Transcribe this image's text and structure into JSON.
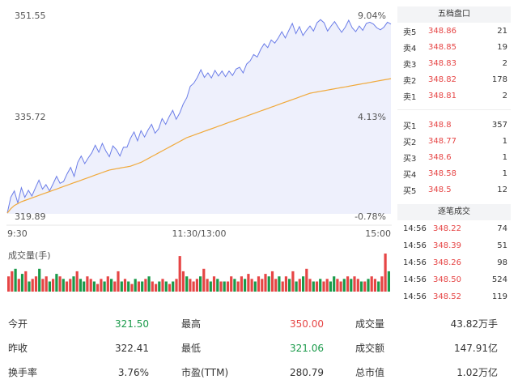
{
  "chart": {
    "y_labels": {
      "high": "351.55",
      "mid": "335.72",
      "low": "319.89"
    },
    "pct_labels": {
      "high": "9.04%",
      "mid": "4.13%",
      "low": "-0.78%"
    },
    "x_labels": [
      "9:30",
      "11:30/13:00",
      "15:00"
    ],
    "volume_title": "成交量(手)",
    "colors": {
      "price": "#6b7de8",
      "avg": "#f0a93b",
      "up": "#e64545",
      "down": "#1a9a4a",
      "fill": "#eef0fc"
    }
  },
  "chart_data": {
    "type": "line",
    "ylim": [
      319.89,
      351.55
    ],
    "series": [
      {
        "name": "",
        "values": [
          320.0,
          322.5,
          323.5,
          321.6,
          324.0,
          322.5,
          323.6,
          322.7,
          324.0,
          325.2,
          323.8,
          324.5,
          323.5,
          324.6,
          325.8,
          324.7,
          325.0,
          326.2,
          327.2,
          325.8,
          328.0,
          329.0,
          327.8,
          328.7,
          329.5,
          330.7,
          329.6,
          331.0,
          329.8,
          328.9,
          330.6,
          330.0,
          329.0,
          330.4,
          330.4,
          331.8,
          332.8,
          331.4,
          333.0,
          332.0,
          333.1,
          334.0,
          332.6,
          333.3,
          334.9,
          334.0,
          335.2,
          336.2,
          334.8,
          335.8,
          337.2,
          338.2,
          340.0,
          340.5,
          341.4,
          342.6,
          341.4,
          342.1,
          341.3,
          342.5,
          341.6,
          342.4,
          341.5,
          342.4,
          341.7,
          342.7,
          343.0,
          342.1,
          343.5,
          344.0,
          345.0,
          344.6,
          345.8,
          346.7,
          346.1,
          347.3,
          346.8,
          347.6,
          348.6,
          347.6,
          348.8,
          349.9,
          348.3,
          349.4,
          348.0,
          348.8,
          349.5,
          348.7,
          350.0,
          350.5,
          350.0,
          348.7,
          349.5,
          350.2,
          349.3,
          348.5,
          349.3,
          350.4,
          349.2,
          348.6,
          349.5,
          348.8,
          349.9,
          350.1,
          349.8,
          349.2,
          348.9,
          349.3,
          350.1,
          349.8
        ]
      },
      {
        "name": "",
        "values": [
          320.0,
          320.7,
          321.2,
          321.5,
          321.8,
          322.0,
          322.2,
          322.4,
          322.6,
          322.8,
          323.0,
          323.2,
          323.4,
          323.6,
          323.8,
          324.0,
          324.2,
          324.4,
          324.6,
          324.8,
          325.0,
          325.2,
          325.4,
          325.6,
          325.8,
          326.0,
          326.2,
          326.4,
          326.6,
          326.8,
          326.9,
          327.0,
          327.1,
          327.2,
          327.3,
          327.4,
          327.6,
          327.8,
          328.0,
          328.3,
          328.6,
          328.9,
          329.2,
          329.5,
          329.8,
          330.1,
          330.4,
          330.7,
          331.0,
          331.3,
          331.6,
          331.9,
          332.1,
          332.3,
          332.5,
          332.7,
          332.9,
          333.1,
          333.3,
          333.5,
          333.7,
          333.9,
          334.1,
          334.3,
          334.5,
          334.7,
          334.9,
          335.1,
          335.3,
          335.5,
          335.7,
          335.9,
          336.1,
          336.3,
          336.5,
          336.7,
          336.9,
          337.1,
          337.3,
          337.5,
          337.7,
          337.9,
          338.1,
          338.3,
          338.5,
          338.7,
          338.9,
          339.0,
          339.1,
          339.2,
          339.3,
          339.4,
          339.5,
          339.6,
          339.7,
          339.8,
          339.9,
          340.0,
          340.1,
          340.2,
          340.3,
          340.4,
          340.5,
          340.6,
          340.7,
          340.8,
          340.9,
          341.0,
          341.1,
          341.2
        ]
      }
    ],
    "volume": [
      6,
      8,
      9,
      5,
      7,
      8,
      4,
      5,
      6,
      9,
      5,
      6,
      4,
      5,
      7,
      6,
      5,
      4,
      5,
      6,
      8,
      5,
      4,
      6,
      5,
      4,
      3,
      5,
      4,
      6,
      5,
      4,
      8,
      4,
      5,
      4,
      3,
      5,
      4,
      4,
      5,
      6,
      4,
      3,
      4,
      5,
      4,
      3,
      4,
      5,
      14,
      8,
      6,
      5,
      4,
      5,
      6,
      9,
      5,
      4,
      6,
      5,
      4,
      4,
      4,
      6,
      5,
      4,
      6,
      5,
      7,
      5,
      4,
      6,
      5,
      7,
      6,
      8,
      5,
      6,
      4,
      6,
      5,
      8,
      4,
      5,
      6,
      9,
      5,
      4,
      4,
      5,
      4,
      5,
      4,
      6,
      5,
      4,
      5,
      6,
      5,
      6,
      5,
      4,
      4,
      5,
      6,
      5,
      4,
      6,
      15,
      8
    ],
    "volume_up": [
      1,
      1,
      0,
      1,
      0,
      1,
      0,
      1,
      1,
      0,
      1,
      1,
      0,
      1,
      0,
      1,
      0,
      1,
      1,
      0,
      1,
      0,
      0,
      1,
      1,
      0,
      1,
      1,
      0,
      1,
      0,
      1,
      1,
      0,
      1,
      0,
      1,
      0,
      1,
      0,
      1,
      0,
      1,
      1,
      0,
      1,
      0,
      1,
      0,
      1,
      1,
      1,
      0,
      1,
      1,
      1,
      0,
      1,
      1,
      0,
      1,
      0,
      1,
      0,
      1,
      1,
      0,
      1,
      1,
      0,
      1,
      1,
      0,
      1,
      1,
      1,
      0,
      1,
      1,
      0,
      1,
      1,
      0,
      1,
      0,
      1,
      0,
      1,
      1,
      0,
      1,
      0,
      1,
      1,
      0,
      0,
      1,
      1,
      0,
      1,
      0,
      1,
      1,
      0,
      1,
      0,
      1,
      1,
      0,
      1,
      1,
      0
    ]
  },
  "quotes": {
    "title": "五档盘口",
    "asks": [
      {
        "label": "卖5",
        "price": "348.86",
        "vol": "21"
      },
      {
        "label": "卖4",
        "price": "348.85",
        "vol": "19"
      },
      {
        "label": "卖3",
        "price": "348.83",
        "vol": "2"
      },
      {
        "label": "卖2",
        "price": "348.82",
        "vol": "178"
      },
      {
        "label": "卖1",
        "price": "348.81",
        "vol": "2"
      }
    ],
    "bids": [
      {
        "label": "买1",
        "price": "348.8",
        "vol": "357"
      },
      {
        "label": "买2",
        "price": "348.77",
        "vol": "1"
      },
      {
        "label": "买3",
        "price": "348.6",
        "vol": "1"
      },
      {
        "label": "买4",
        "price": "348.58",
        "vol": "1"
      },
      {
        "label": "买5",
        "price": "348.5",
        "vol": "12"
      }
    ]
  },
  "trades": {
    "title": "逐笔成交",
    "rows": [
      {
        "time": "14:56",
        "price": "348.22",
        "vol": "74"
      },
      {
        "time": "14:56",
        "price": "348.39",
        "vol": "51"
      },
      {
        "time": "14:56",
        "price": "348.26",
        "vol": "98"
      },
      {
        "time": "14:56",
        "price": "348.50",
        "vol": "524"
      },
      {
        "time": "14:56",
        "price": "348.52",
        "vol": "119"
      }
    ]
  },
  "stats": {
    "open_label": "今开",
    "open": "321.50",
    "high_label": "最高",
    "high": "350.00",
    "volume_label": "成交量",
    "volume": "43.82万手",
    "prev_label": "昨收",
    "prev": "322.41",
    "low_label": "最低",
    "low": "321.06",
    "amount_label": "成交额",
    "amount": "147.91亿",
    "turnover_label": "换手率",
    "turnover": "3.76%",
    "pe_label": "市盈(TTM)",
    "pe": "280.79",
    "mcap_label": "总市值",
    "mcap": "1.02万亿"
  }
}
